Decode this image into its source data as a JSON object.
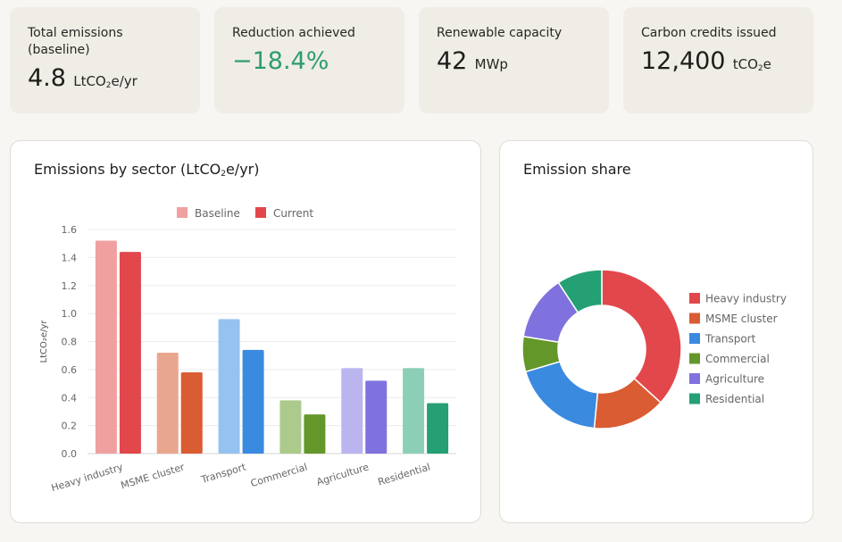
{
  "kpis": [
    {
      "label": "Total emissions (baseline)",
      "value": "4.8",
      "unit_pre": "LtCO",
      "unit_sub": "2",
      "unit_post": "e/yr",
      "accent": ""
    },
    {
      "label": "Reduction achieved",
      "value": "−18.4%",
      "unit_pre": "",
      "unit_sub": "",
      "unit_post": "",
      "accent": "#2d9c72"
    },
    {
      "label": "Renewable capacity",
      "value": "42",
      "unit_pre": "MWp",
      "unit_sub": "",
      "unit_post": "",
      "accent": ""
    },
    {
      "label": "Carbon credits issued",
      "value": "12,400",
      "unit_pre": "tCO",
      "unit_sub": "2",
      "unit_post": "e",
      "accent": ""
    }
  ],
  "bar_card": {
    "title_pre": "Emissions by sector (LtCO",
    "title_sub": "2",
    "title_post": "e/yr)"
  },
  "pie_card": {
    "title": "Emission share"
  },
  "chart_data": [
    {
      "type": "bar",
      "title": "Emissions by sector (LtCO2e/yr)",
      "categories": [
        "Heavy industry",
        "MSME cluster",
        "Transport",
        "Commercial",
        "Agriculture",
        "Residential"
      ],
      "series": [
        {
          "name": "Baseline",
          "values": [
            1.52,
            0.72,
            0.96,
            0.38,
            0.61,
            0.61
          ]
        },
        {
          "name": "Current",
          "values": [
            1.44,
            0.58,
            0.74,
            0.28,
            0.52,
            0.36
          ]
        }
      ],
      "colors": {
        "Baseline": [
          "#f0a0a0",
          "#e9a68e",
          "#96c2f1",
          "#acca8c",
          "#bbb5ef",
          "#8ccfb6"
        ],
        "Current": [
          "#e2474c",
          "#d95c33",
          "#3a8ae0",
          "#64972a",
          "#7f72de",
          "#24a074"
        ]
      },
      "ylabel": "LtCO₂e/yr",
      "xlabel": "",
      "ylim": [
        0,
        1.6
      ],
      "yticks": [
        "0.0",
        "0.2",
        "0.4",
        "0.6",
        "0.8",
        "1.0",
        "1.2",
        "1.4",
        "1.6"
      ],
      "legend_position": "top",
      "grid": true
    },
    {
      "type": "pie",
      "title": "Emission share",
      "donut": true,
      "labels": [
        "Heavy industry",
        "MSME cluster",
        "Transport",
        "Commercial",
        "Agriculture",
        "Residential"
      ],
      "values": [
        1.44,
        0.58,
        0.74,
        0.28,
        0.52,
        0.36
      ],
      "colors": [
        "#e2474c",
        "#d95c33",
        "#3a8ae0",
        "#64972a",
        "#7f72de",
        "#24a074"
      ],
      "legend_position": "right"
    }
  ]
}
